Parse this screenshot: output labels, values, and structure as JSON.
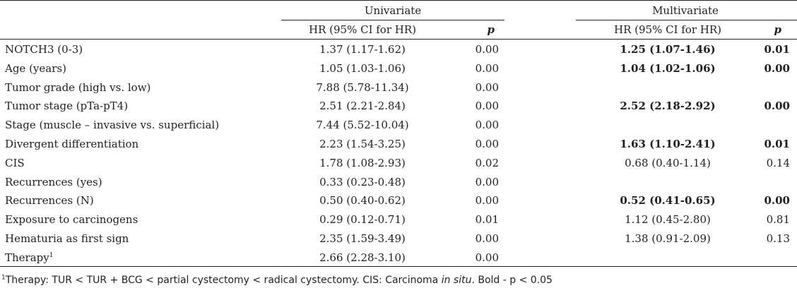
{
  "header": {
    "univariate": "Univariate",
    "multivariate": "Multivariate",
    "hr_label": "HR (95% CI for HR)",
    "p_label": "p"
  },
  "rows": [
    {
      "label": "NOTCH3 (0-3)",
      "uni_hr": "1.37 (1.17-1.62)",
      "uni_p": "0.00",
      "multi_hr": "1.25 (1.07-1.46)",
      "multi_p": "0.01",
      "bold": true
    },
    {
      "label": "Age (years)",
      "uni_hr": "1.05 (1.03-1.06)",
      "uni_p": "0.00",
      "multi_hr": "1.04 (1.02-1.06)",
      "multi_p": "0.00",
      "bold": true
    },
    {
      "label": "Tumor grade (high vs. low)",
      "uni_hr": "7.88 (5.78-11.34)",
      "uni_p": "0.00",
      "multi_hr": "",
      "multi_p": "",
      "bold": false
    },
    {
      "label": "Tumor stage (pTa-pT4)",
      "uni_hr": "2.51 (2.21-2.84)",
      "uni_p": "0.00",
      "multi_hr": "2.52 (2.18-2.92)",
      "multi_p": "0.00",
      "bold": true
    },
    {
      "label": "Stage (muscle – invasive vs. superficial)",
      "uni_hr": "7.44 (5.52-10.04)",
      "uni_p": "0.00",
      "multi_hr": "",
      "multi_p": "",
      "bold": false
    },
    {
      "label": "Divergent differentiation",
      "uni_hr": "2.23 (1.54-3.25)",
      "uni_p": "0.00",
      "multi_hr": "1.63 (1.10-2.41)",
      "multi_p": "0.01",
      "bold": true
    },
    {
      "label": "CIS",
      "uni_hr": "1.78 (1.08-2.93)",
      "uni_p": "0.02",
      "multi_hr": "0.68 (0.40-1.14)",
      "multi_p": "0.14",
      "bold": false
    },
    {
      "label": "Recurrences (yes)",
      "uni_hr": "0.33 (0.23-0.48)",
      "uni_p": "0.00",
      "multi_hr": "",
      "multi_p": "",
      "bold": false
    },
    {
      "label": "Recurrences (N)",
      "uni_hr": "0.50 (0.40-0.62)",
      "uni_p": "0.00",
      "multi_hr": "0.52 (0.41-0.65)",
      "multi_p": "0.00",
      "bold": true
    },
    {
      "label": "Exposure to carcinogens",
      "uni_hr": "0.29 (0.12-0.71)",
      "uni_p": "0.01",
      "multi_hr": "1.12 (0.45-2.80)",
      "multi_p": "0.81",
      "bold": false
    },
    {
      "label": "Hematuria as first sign",
      "uni_hr": "2.35 (1.59-3.49)",
      "uni_p": "0.00",
      "multi_hr": "1.38 (0.91-2.09)",
      "multi_p": "0.13",
      "bold": false
    },
    {
      "label": "Therapy",
      "label_sup": "1",
      "uni_hr": "2.66 (2.28-3.10)",
      "uni_p": "0.00",
      "multi_hr": "",
      "multi_p": "",
      "bold": false
    }
  ],
  "footnote": {
    "marker": "1",
    "text_a": "Therapy: TUR < TUR + BCG < partial cystectomy < radical cystectomy. CIS: Carcinoma ",
    "text_italic": "in situ",
    "text_b": ". Bold - p < 0.05"
  }
}
